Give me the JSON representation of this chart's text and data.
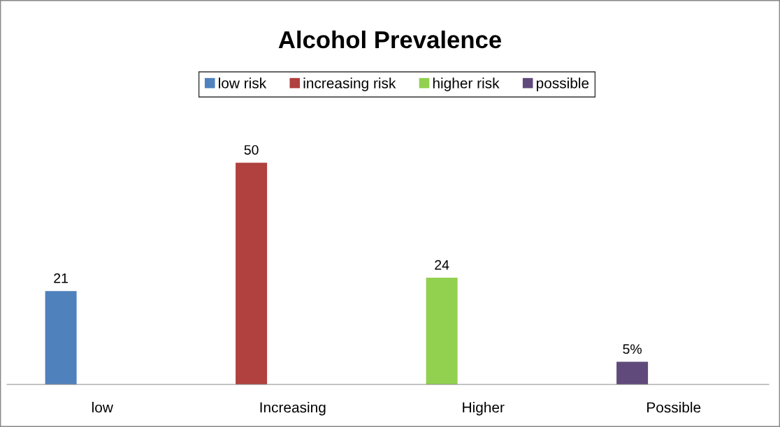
{
  "chart_data": {
    "type": "bar",
    "title": "Alcohol Prevalence",
    "categories": [
      "low",
      "Increasing",
      "Higher",
      "Possible"
    ],
    "series": [
      {
        "name": "low risk",
        "color": "#4f81bd",
        "values": [
          21,
          null,
          null,
          null
        ],
        "value_labels": [
          "21",
          null,
          null,
          null
        ]
      },
      {
        "name": "increasing risk",
        "color": "#b0413e",
        "values": [
          null,
          50,
          null,
          null
        ],
        "value_labels": [
          null,
          "50",
          null,
          null
        ]
      },
      {
        "name": "higher risk",
        "color": "#92d050",
        "values": [
          null,
          null,
          24,
          null
        ],
        "value_labels": [
          null,
          null,
          "24",
          null
        ]
      },
      {
        "name": "possible",
        "color": "#604a7b",
        "values": [
          null,
          null,
          null,
          5
        ],
        "value_labels": [
          null,
          null,
          null,
          "5%"
        ]
      }
    ],
    "legend": "top",
    "grid": false
  }
}
